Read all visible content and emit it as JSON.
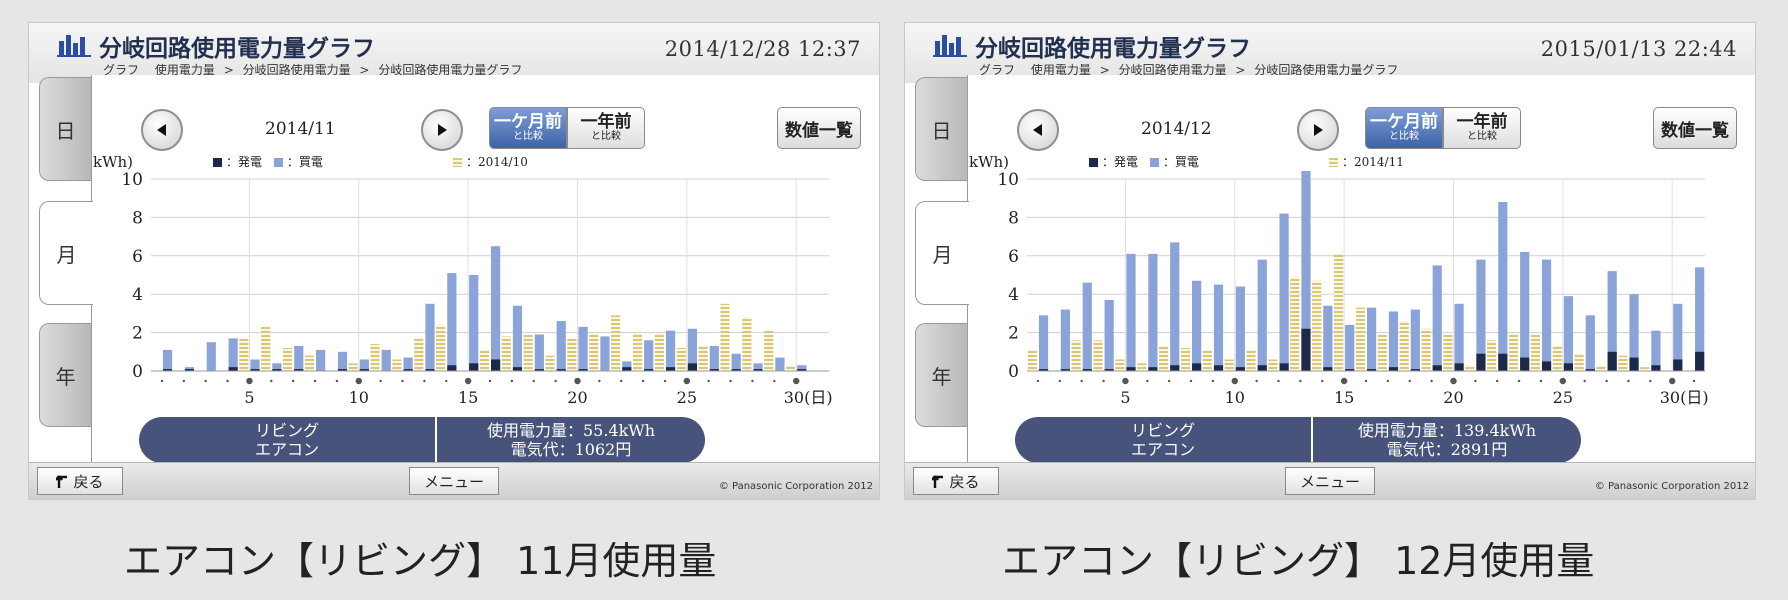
{
  "screens": [
    {
      "title": "分岐回路使用電力量グラフ",
      "datetime": "2014/12/28  12:37",
      "breadcrumb": [
        "グラフ",
        "使用電力量",
        "分岐回路使用電力量",
        "分岐回路使用電力量グラフ"
      ],
      "tabs": [
        "日",
        "月",
        "年"
      ],
      "active_tab": "月",
      "period": "2014/11",
      "compare_month": {
        "big": "一ケ月前",
        "small": "と比較"
      },
      "compare_year": {
        "big": "一年前",
        "small": "と比較"
      },
      "list_button": "数値一覧",
      "legend": {
        "generation": "：発電",
        "purchase": "：買電",
        "previous": "：2014/10"
      },
      "unit_label": "kWh)",
      "summary": {
        "room": "リビング",
        "appliance": "エアコン",
        "usage": "使用電力量：55.4kWh",
        "cost": "電気代：1062円"
      },
      "footer": {
        "back": "戻る",
        "menu": "メニュー",
        "copyright": "© Panasonic Corporation 2012"
      },
      "chart_data": {
        "type": "bar",
        "ylim": [
          0,
          10
        ],
        "yticks": [
          "0",
          "2",
          "4",
          "6",
          "8",
          "10"
        ],
        "xticks": [
          {
            "day": 5,
            "label": "5"
          },
          {
            "day": 10,
            "label": "10"
          },
          {
            "day": 15,
            "label": "15"
          },
          {
            "day": 20,
            "label": "20"
          },
          {
            "day": 25,
            "label": "25"
          },
          {
            "day": 30,
            "label": "30(日)"
          }
        ],
        "days": 30,
        "grid": true,
        "series": [
          {
            "name": "発電",
            "values": [
              0.1,
              0.1,
              0,
              0.2,
              0.1,
              0.1,
              0.1,
              0,
              0.1,
              0.1,
              0,
              0.1,
              0.1,
              0.3,
              0.4,
              0.6,
              0.2,
              0.1,
              0.1,
              0.1,
              0,
              0.2,
              0.1,
              0.2,
              0.4,
              0.1,
              0.1,
              0.1,
              0,
              0.1
            ]
          },
          {
            "name": "買電",
            "values": [
              1.0,
              0.1,
              1.5,
              1.5,
              0.5,
              0.3,
              1.2,
              1.1,
              0.9,
              0.5,
              1.1,
              0.6,
              3.4,
              4.8,
              4.6,
              5.9,
              3.2,
              1.8,
              2.5,
              2.2,
              1.8,
              0.3,
              1.5,
              1.9,
              1.8,
              1.2,
              0.8,
              0.3,
              0.7,
              0.2
            ]
          },
          {
            "name": "2014/10",
            "values": [
              0,
              0,
              0,
              0,
              1.7,
              2.3,
              1.2,
              0.8,
              0,
              0.4,
              1.4,
              0.6,
              1.7,
              2.4,
              0,
              1.1,
              1.8,
              1.9,
              0.8,
              1.7,
              2.0,
              2.9,
              2.0,
              2.0,
              1.2,
              1.3,
              3.5,
              2.8,
              2.1,
              0.3
            ]
          }
        ]
      }
    },
    {
      "title": "分岐回路使用電力量グラフ",
      "datetime": "2015/01/13  22:44",
      "breadcrumb": [
        "グラフ",
        "使用電力量",
        "分岐回路使用電力量",
        "分岐回路使用電力量グラフ"
      ],
      "tabs": [
        "日",
        "月",
        "年"
      ],
      "active_tab": "月",
      "period": "2014/12",
      "compare_month": {
        "big": "一ケ月前",
        "small": "と比較"
      },
      "compare_year": {
        "big": "一年前",
        "small": "と比較"
      },
      "list_button": "数値一覧",
      "legend": {
        "generation": "：発電",
        "purchase": "：買電",
        "previous": "：2014/11"
      },
      "unit_label": "kWh)",
      "summary": {
        "room": "リビング",
        "appliance": "エアコン",
        "usage": "使用電力量：139.4kWh",
        "cost": "電気代：2891円"
      },
      "footer": {
        "back": "戻る",
        "menu": "メニュー",
        "copyright": "© Panasonic Corporation 2012"
      },
      "chart_data": {
        "type": "bar",
        "ylim": [
          0,
          10
        ],
        "yticks": [
          "0",
          "2",
          "4",
          "6",
          "8",
          "10"
        ],
        "xticks": [
          {
            "day": 5,
            "label": "5"
          },
          {
            "day": 10,
            "label": "10"
          },
          {
            "day": 15,
            "label": "15"
          },
          {
            "day": 20,
            "label": "20"
          },
          {
            "day": 25,
            "label": "25"
          },
          {
            "day": 30,
            "label": "30(日)"
          }
        ],
        "days": 31,
        "grid": true,
        "series": [
          {
            "name": "発電",
            "values": [
              0.1,
              0.1,
              0.1,
              0.1,
              0.2,
              0.2,
              0.3,
              0.4,
              0.3,
              0.2,
              0.3,
              0.4,
              2.2,
              0.2,
              0.1,
              0.1,
              0.2,
              0.1,
              0.3,
              0.4,
              0.9,
              0.9,
              0.7,
              0.5,
              0.4,
              0.1,
              1.0,
              0.7,
              0.3,
              0.6,
              1.0
            ]
          },
          {
            "name": "買電",
            "values": [
              2.8,
              3.1,
              4.5,
              3.6,
              5.9,
              5.9,
              6.4,
              4.3,
              4.2,
              4.2,
              5.5,
              7.8,
              8.7,
              3.2,
              2.3,
              3.2,
              2.9,
              3.1,
              5.2,
              3.1,
              4.9,
              7.9,
              5.5,
              5.3,
              3.5,
              2.8,
              4.2,
              3.3,
              1.8,
              2.9,
              4.4
            ]
          },
          {
            "name": "2014/11",
            "values": [
              1.1,
              0,
              1.6,
              1.6,
              0.6,
              0.4,
              1.3,
              1.2,
              1.1,
              0.6,
              1.1,
              0.6,
              4.9,
              4.7,
              6.1,
              3.3,
              1.9,
              2.6,
              2.2,
              1.9,
              0.3,
              1.6,
              2.0,
              1.9,
              1.3,
              0.9,
              0.3,
              0.8,
              0.2,
              0
            ]
          }
        ]
      }
    }
  ],
  "captions": [
    "エアコン【リビング】 11月使用量",
    "エアコン【リビング】 12月使用量"
  ],
  "colors": {
    "generation": "#1c2a4a",
    "purchase": "#8aa3d8",
    "previous_light": "#fbf6de",
    "previous_dark": "#d8c67a",
    "compare_active": "#3d63a8",
    "summary_bg": "#47537b"
  },
  "icons": {
    "logo": "bar-chart-icon",
    "prev": "triangle-left-icon",
    "next": "triangle-right-icon",
    "back": "return-arrow-icon"
  }
}
